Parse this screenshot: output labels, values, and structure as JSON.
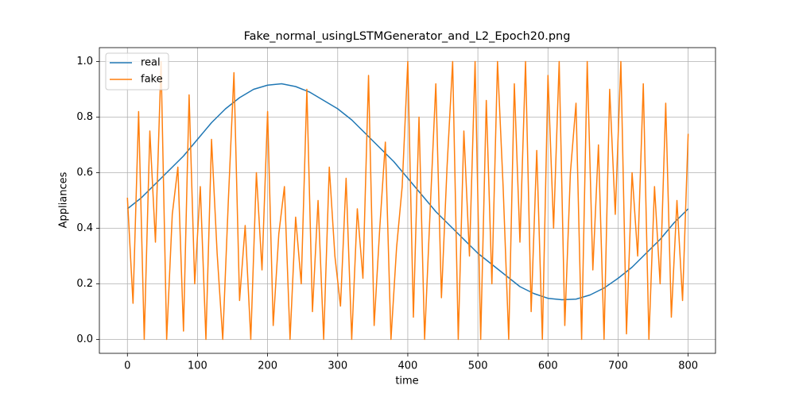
{
  "chart_data": {
    "type": "line",
    "title": "Fake_normal_usingLSTMGenerator_and_L2_Epoch20.png",
    "x_label": "time",
    "y_label": "Appliances",
    "xlim": [
      -40,
      839
    ],
    "ylim": [
      -0.05,
      1.05
    ],
    "xticks": [
      0,
      100,
      200,
      300,
      400,
      500,
      600,
      700,
      800
    ],
    "yticks": [
      {
        "value": 0,
        "label": "0.0"
      },
      0.2,
      0.4,
      0.6,
      0.8,
      {
        "value": 1,
        "label": "1.0"
      }
    ],
    "grid": true,
    "legend": "upper-left",
    "series": [
      {
        "name": "real",
        "color": "#1f77b4",
        "x": [
          0,
          20,
          40,
          60,
          80,
          100,
          120,
          140,
          160,
          180,
          200,
          220,
          240,
          260,
          280,
          300,
          320,
          340,
          360,
          380,
          400,
          420,
          440,
          460,
          480,
          500,
          520,
          540,
          560,
          580,
          600,
          620,
          640,
          660,
          680,
          700,
          720,
          740,
          760,
          780,
          800
        ],
        "values": [
          0.47,
          0.51,
          0.56,
          0.61,
          0.66,
          0.72,
          0.78,
          0.83,
          0.87,
          0.9,
          0.915,
          0.92,
          0.91,
          0.89,
          0.86,
          0.83,
          0.79,
          0.74,
          0.69,
          0.64,
          0.58,
          0.52,
          0.46,
          0.41,
          0.36,
          0.31,
          0.27,
          0.23,
          0.19,
          0.165,
          0.148,
          0.143,
          0.145,
          0.16,
          0.185,
          0.22,
          0.26,
          0.31,
          0.36,
          0.42,
          0.47
        ]
      },
      {
        "name": "fake",
        "color": "#ff7f0e",
        "x": [
          0,
          8,
          16,
          24,
          32,
          40,
          48,
          56,
          64,
          72,
          80,
          88,
          96,
          104,
          112,
          120,
          128,
          136,
          144,
          152,
          160,
          168,
          176,
          184,
          192,
          200,
          208,
          216,
          224,
          232,
          240,
          248,
          256,
          264,
          272,
          280,
          288,
          296,
          304,
          312,
          320,
          328,
          336,
          344,
          352,
          360,
          368,
          376,
          384,
          392,
          400,
          408,
          416,
          424,
          432,
          440,
          448,
          456,
          464,
          472,
          480,
          488,
          496,
          504,
          512,
          520,
          528,
          536,
          544,
          552,
          560,
          568,
          576,
          584,
          592,
          600,
          608,
          616,
          624,
          632,
          640,
          648,
          656,
          664,
          672,
          680,
          688,
          696,
          704,
          712,
          720,
          728,
          736,
          744,
          752,
          760,
          768,
          776,
          784,
          792,
          800
        ],
        "values": [
          0.51,
          0.13,
          0.82,
          0.0,
          0.75,
          0.35,
          1.0,
          0.0,
          0.45,
          0.62,
          0.03,
          0.88,
          0.2,
          0.55,
          0.0,
          0.72,
          0.31,
          0.0,
          0.5,
          0.96,
          0.14,
          0.41,
          0.0,
          0.6,
          0.25,
          0.82,
          0.05,
          0.38,
          0.55,
          0.0,
          0.44,
          0.2,
          0.9,
          0.1,
          0.5,
          0.0,
          0.62,
          0.3,
          0.12,
          0.58,
          0.0,
          0.47,
          0.22,
          0.95,
          0.05,
          0.4,
          0.71,
          0.0,
          0.33,
          0.55,
          1.0,
          0.08,
          0.8,
          0.0,
          0.47,
          0.92,
          0.15,
          0.62,
          1.0,
          0.0,
          0.75,
          0.3,
          1.0,
          0.0,
          0.86,
          0.2,
          1.0,
          0.55,
          0.0,
          0.92,
          0.35,
          1.0,
          0.1,
          0.68,
          0.0,
          0.95,
          0.4,
          1.0,
          0.05,
          0.6,
          0.85,
          0.0,
          1.0,
          0.25,
          0.7,
          0.0,
          0.9,
          0.45,
          1.0,
          0.02,
          0.6,
          0.3,
          0.92,
          0.0,
          0.55,
          0.2,
          0.85,
          0.08,
          0.5,
          0.14,
          0.74
        ]
      }
    ]
  }
}
